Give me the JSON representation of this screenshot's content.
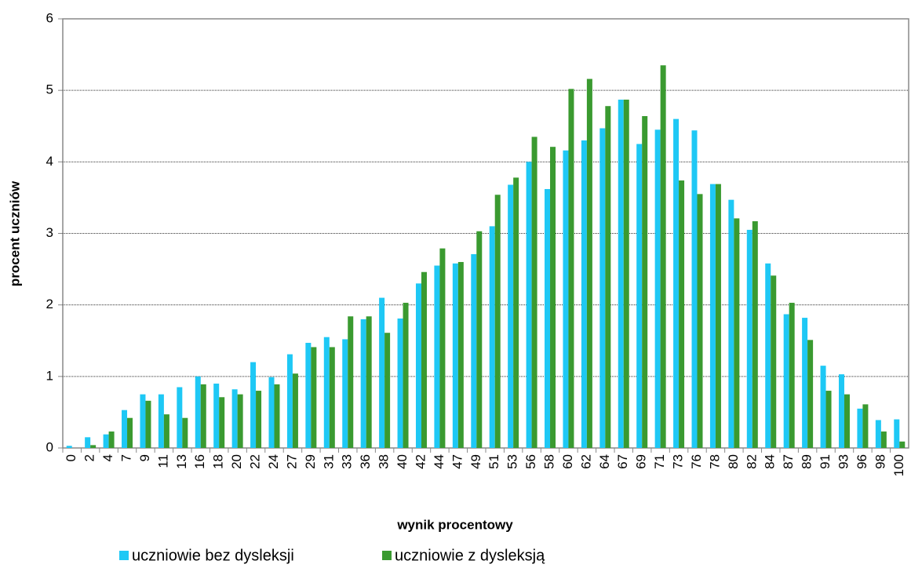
{
  "chart_data": {
    "type": "bar",
    "x_label": "wynik procentowy",
    "y_label": "procent uczniów",
    "categories": [
      "0",
      "2",
      "4",
      "7",
      "9",
      "11",
      "13",
      "16",
      "18",
      "20",
      "22",
      "24",
      "27",
      "29",
      "31",
      "33",
      "36",
      "38",
      "40",
      "42",
      "44",
      "47",
      "49",
      "51",
      "53",
      "56",
      "58",
      "60",
      "62",
      "64",
      "67",
      "69",
      "71",
      "73",
      "76",
      "78",
      "80",
      "82",
      "84",
      "87",
      "89",
      "91",
      "93",
      "96",
      "98",
      "100"
    ],
    "series": [
      {
        "name": "uczniowie bez dysleksji",
        "color": "#1ec8f5",
        "values": [
          0.03,
          0.15,
          0.19,
          0.53,
          0.75,
          0.75,
          0.85,
          1.0,
          0.9,
          0.82,
          1.2,
          0.99,
          1.31,
          1.47,
          1.55,
          1.52,
          1.8,
          2.1,
          1.81,
          2.3,
          2.55,
          2.58,
          2.71,
          3.1,
          3.68,
          4.0,
          3.62,
          4.16,
          4.3,
          4.47,
          4.87,
          4.25,
          4.45,
          4.6,
          4.44,
          3.69,
          3.47,
          3.05,
          2.58,
          1.87,
          1.82,
          1.15,
          1.03,
          0.55,
          0.39,
          0.4
        ]
      },
      {
        "name": "uczniowie z dysleksją",
        "color": "#3a9a30",
        "values": [
          0,
          0.04,
          0.23,
          0.42,
          0.66,
          0.47,
          0.42,
          0.89,
          0.71,
          0.75,
          0.8,
          0.89,
          1.04,
          1.41,
          1.41,
          1.84,
          1.84,
          1.61,
          2.03,
          2.46,
          2.79,
          2.6,
          3.03,
          3.54,
          3.78,
          4.35,
          4.21,
          5.02,
          5.16,
          4.78,
          4.87,
          4.64,
          5.35,
          3.74,
          3.55,
          3.69,
          3.21,
          3.17,
          2.41,
          2.03,
          1.51,
          0.8,
          0.75,
          0.61,
          0.23,
          0.09
        ]
      }
    ],
    "ylim": [
      0,
      6
    ],
    "yticks": [
      0,
      1,
      2,
      3,
      4,
      5,
      6
    ],
    "grid": true,
    "legend": "bottom"
  }
}
